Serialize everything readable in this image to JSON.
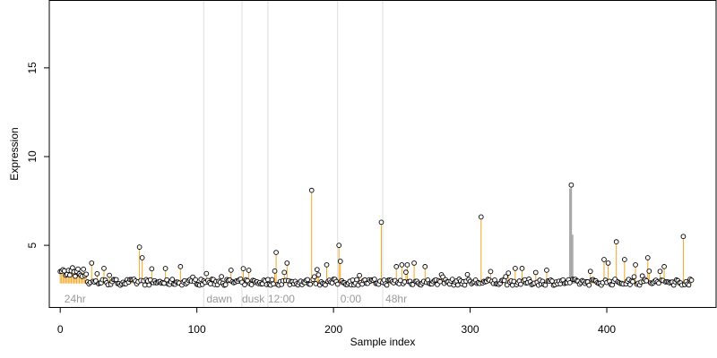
{
  "chart_data": {
    "type": "scatter",
    "title": "",
    "xlabel": "Sample index",
    "ylabel": "Expression",
    "xlim": [
      -8,
      480
    ],
    "ylim": [
      1.5,
      18.8
    ],
    "x_ticks": [
      0,
      100,
      200,
      300,
      400
    ],
    "y_ticks": [
      5,
      10,
      15
    ],
    "baseline": 2.85,
    "grid": false,
    "legend": "none",
    "colors": {
      "point_stroke": "#000000",
      "point_fill": "#ffffff",
      "stem_high": "#f5a623",
      "stem_low": "#b8c8d8",
      "stem_gray": "#a6a6a6",
      "separator": "#dddddd",
      "condition_text": "#9a9a9a"
    },
    "separators": [
      105,
      133,
      152,
      203,
      236
    ],
    "conditions": [
      {
        "label": "24hr",
        "x": 3
      },
      {
        "label": "dawn",
        "x": 107
      },
      {
        "label": "dusk",
        "x": 133
      },
      {
        "label": "12:00",
        "x": 152
      },
      {
        "label": "0:00",
        "x": 205
      },
      {
        "label": "48hr",
        "x": 238
      }
    ],
    "highlight_points": [
      {
        "x": 58,
        "y": 4.9
      },
      {
        "x": 60,
        "y": 4.3
      },
      {
        "x": 158,
        "y": 4.6
      },
      {
        "x": 184,
        "y": 8.1
      },
      {
        "x": 204,
        "y": 5.0
      },
      {
        "x": 205,
        "y": 4.1
      },
      {
        "x": 235,
        "y": 6.3
      },
      {
        "x": 308,
        "y": 6.6
      },
      {
        "x": 374,
        "y": 8.4
      },
      {
        "x": 407,
        "y": 5.2
      },
      {
        "x": 456,
        "y": 5.5
      },
      {
        "x": 23,
        "y": 4.0
      },
      {
        "x": 32,
        "y": 3.7
      },
      {
        "x": 88,
        "y": 3.8
      },
      {
        "x": 166,
        "y": 4.0
      },
      {
        "x": 195,
        "y": 3.9
      },
      {
        "x": 246,
        "y": 3.8
      },
      {
        "x": 250,
        "y": 3.9
      },
      {
        "x": 254,
        "y": 3.9
      },
      {
        "x": 259,
        "y": 4.0
      },
      {
        "x": 267,
        "y": 3.8
      },
      {
        "x": 333,
        "y": 3.7
      },
      {
        "x": 356,
        "y": 3.6
      },
      {
        "x": 398,
        "y": 4.2
      },
      {
        "x": 401,
        "y": 4.0
      },
      {
        "x": 413,
        "y": 4.2
      },
      {
        "x": 421,
        "y": 3.9
      },
      {
        "x": 430,
        "y": 4.3
      },
      {
        "x": 442,
        "y": 3.8
      }
    ]
  }
}
